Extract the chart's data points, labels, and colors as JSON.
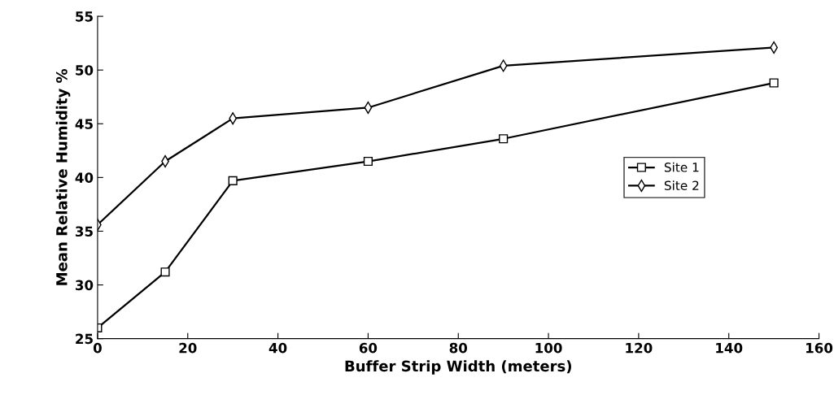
{
  "chart_data": {
    "type": "line",
    "xlabel": "Buffer Strip Width (meters)",
    "ylabel": "Mean Relative Humidity %",
    "x": [
      0,
      15,
      30,
      60,
      90,
      150
    ],
    "series": [
      {
        "name": "Site 1",
        "color": "#000000",
        "marker": "square",
        "values": [
          26.0,
          31.2,
          39.7,
          41.5,
          43.6,
          48.8
        ]
      },
      {
        "name": "Site 2",
        "color": "#000000",
        "marker": "diamond",
        "values": [
          35.6,
          41.5,
          45.5,
          46.5,
          50.4,
          52.1
        ]
      }
    ],
    "xlim": [
      0,
      160
    ],
    "xticks": [
      0,
      20,
      40,
      60,
      80,
      100,
      120,
      140,
      160
    ],
    "ylim": [
      25,
      55
    ],
    "yticks": [
      25,
      30,
      35,
      40,
      45,
      50,
      55
    ],
    "grid": false,
    "legend": "right",
    "line_style": "solid"
  }
}
